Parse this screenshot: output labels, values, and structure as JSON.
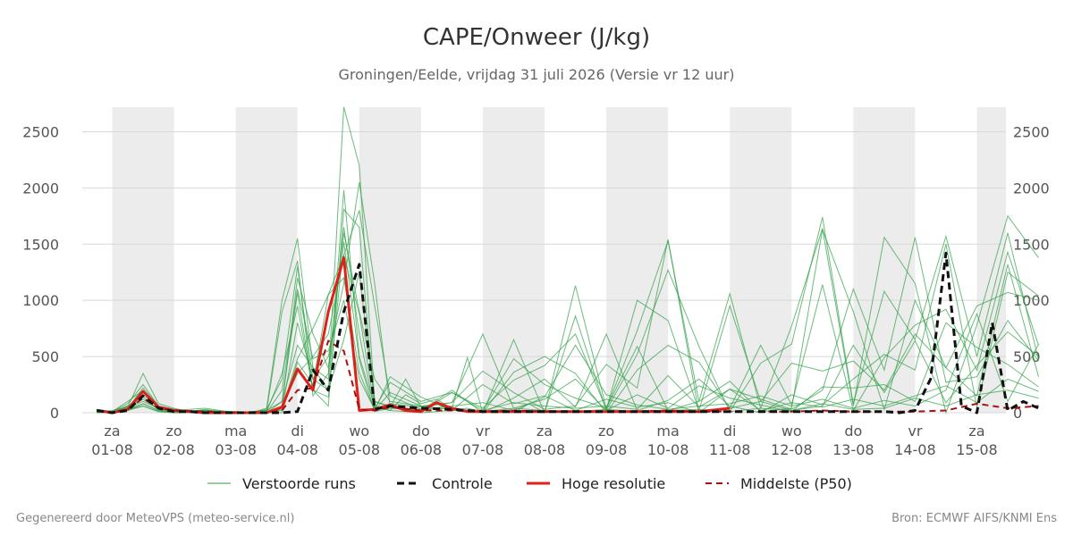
{
  "chart_data": {
    "type": "line",
    "title": "CAPE/Onweer (J/kg)",
    "subtitle": "Groningen/Eelde, vrijdag 31 juli 2026 (Versie vr 12 uur)",
    "ylim": [
      0,
      2750
    ],
    "yticks": [
      0,
      500,
      1000,
      1500,
      2000,
      2500
    ],
    "x_start": "2026-07-31 12:00",
    "x_end": "2026-08-15 12:00",
    "x_ticks": [
      {
        "day": "za",
        "date": "01-08"
      },
      {
        "day": "zo",
        "date": "02-08"
      },
      {
        "day": "ma",
        "date": "03-08"
      },
      {
        "day": "di",
        "date": "04-08"
      },
      {
        "day": "wo",
        "date": "05-08"
      },
      {
        "day": "do",
        "date": "06-08"
      },
      {
        "day": "vr",
        "date": "07-08"
      },
      {
        "day": "za",
        "date": "08-08"
      },
      {
        "day": "zo",
        "date": "09-08"
      },
      {
        "day": "ma",
        "date": "10-08"
      },
      {
        "day": "di",
        "date": "11-08"
      },
      {
        "day": "wo",
        "date": "12-08"
      },
      {
        "day": "do",
        "date": "13-08"
      },
      {
        "day": "vr",
        "date": "14-08"
      },
      {
        "day": "za",
        "date": "15-08"
      }
    ],
    "grid": true,
    "legend_position": "bottom",
    "ensemble_series": [
      {
        "x": [
          -0.25,
          0,
          0.25,
          0.5,
          0.75,
          1,
          1.25,
          1.5,
          1.75,
          2,
          2.25,
          2.5,
          2.75,
          3,
          3.25,
          3.5,
          3.75,
          4,
          4.25,
          4.5,
          4.75,
          5,
          5.25,
          5.5,
          5.75,
          6,
          6.25,
          6.5,
          6.75,
          7,
          7.5,
          8,
          8.5,
          9,
          9.5,
          10,
          10.5,
          11,
          11.5,
          12,
          12.5,
          13,
          13.5,
          14,
          14.5,
          15
        ],
        "y": [
          30,
          0,
          50,
          350,
          80,
          40,
          10,
          30,
          10,
          0,
          0,
          40,
          1000,
          1550,
          400,
          300,
          2720,
          2200,
          100,
          50,
          300,
          50,
          80,
          20,
          40,
          10,
          20,
          0,
          80,
          0,
          1130,
          40,
          730,
          1530,
          100,
          1060,
          40,
          770,
          1640,
          60,
          1560,
          1150,
          0,
          780,
          1750,
          1380
        ]
      },
      {
        "x": [
          -0.25,
          0,
          0.25,
          0.5,
          0.75,
          1,
          1.25,
          1.5,
          1.75,
          2,
          2.25,
          2.5,
          2.75,
          3,
          3.25,
          3.5,
          3.75,
          4,
          4.25,
          4.5,
          4.75,
          5,
          5.25,
          5.5,
          5.75,
          6,
          6.5,
          7,
          7.5,
          8,
          8.5,
          9,
          9.5,
          10,
          10.5,
          11,
          11.5,
          12,
          12.5,
          13,
          13.5,
          14,
          14.5,
          15
        ],
        "y": [
          20,
          10,
          80,
          250,
          60,
          30,
          20,
          10,
          0,
          0,
          0,
          30,
          300,
          1300,
          300,
          200,
          1980,
          500,
          60,
          20,
          160,
          80,
          120,
          40,
          490,
          0,
          650,
          0,
          860,
          20,
          520,
          1270,
          590,
          10,
          440,
          610,
          1740,
          80,
          1080,
          650,
          1570,
          500,
          1600,
          470
        ]
      },
      {
        "x": [
          -0.25,
          0,
          0.25,
          0.5,
          0.75,
          1,
          1.5,
          2,
          2.5,
          2.75,
          3,
          3.25,
          3.5,
          3.75,
          4,
          4.25,
          4.5,
          5,
          5.5,
          6,
          6.5,
          7,
          7.5,
          8,
          8.5,
          9,
          9.5,
          10,
          10.5,
          11,
          11.5,
          12,
          12.5,
          13,
          13.5,
          14,
          14.5,
          15
        ],
        "y": [
          10,
          0,
          40,
          160,
          50,
          20,
          40,
          0,
          20,
          100,
          1070,
          200,
          60,
          1810,
          1650,
          40,
          270,
          100,
          180,
          40,
          290,
          420,
          700,
          30,
          1000,
          820,
          20,
          950,
          100,
          440,
          370,
          460,
          200,
          700,
          400,
          950,
          1070,
          1000
        ]
      },
      {
        "x": [
          -0.25,
          0,
          0.25,
          0.5,
          0.75,
          1,
          1.5,
          2,
          2.5,
          2.75,
          3,
          3.25,
          3.5,
          3.75,
          4,
          4.25,
          4.5,
          5,
          5.5,
          6,
          6.5,
          7,
          7.5,
          8,
          8.5,
          9,
          9.5,
          10,
          10.5,
          11,
          11.5,
          12,
          12.5,
          13,
          13.5,
          14,
          14.5,
          15
        ],
        "y": [
          0,
          10,
          100,
          200,
          40,
          10,
          20,
          0,
          10,
          20,
          800,
          300,
          500,
          1150,
          2050,
          1150,
          50,
          20,
          200,
          0,
          360,
          500,
          350,
          0,
          380,
          600,
          450,
          40,
          600,
          70,
          1140,
          20,
          490,
          780,
          920,
          380,
          1430,
          600
        ]
      },
      {
        "x": [
          -0.25,
          0,
          0.25,
          0.5,
          0.75,
          1,
          1.5,
          2,
          2.5,
          2.75,
          3,
          3.25,
          3.5,
          3.75,
          4,
          4.25,
          4.5,
          5,
          5.5,
          6,
          6.5,
          7,
          7.5,
          8,
          8.5,
          9,
          9.5,
          10,
          10.5,
          11,
          11.5,
          12,
          12.5,
          13,
          13.5,
          14,
          14.5,
          15
        ],
        "y": [
          20,
          0,
          60,
          120,
          30,
          20,
          10,
          0,
          0,
          50,
          1200,
          700,
          400,
          1600,
          900,
          300,
          100,
          60,
          90,
          370,
          180,
          30,
          60,
          430,
          220,
          1540,
          0,
          210,
          120,
          30,
          200,
          1100,
          380,
          1560,
          270,
          320,
          820,
          460
        ]
      },
      {
        "x": [
          -0.25,
          0,
          0.25,
          0.5,
          0.75,
          1,
          1.5,
          2,
          2.5,
          2.75,
          3,
          3.25,
          3.5,
          3.75,
          4,
          4.25,
          4.5,
          5,
          5.5,
          6,
          6.5,
          7,
          7.5,
          8,
          8.5,
          9,
          9.5,
          10,
          10.5,
          11,
          11.5,
          12,
          12.5,
          13,
          13.5,
          14,
          14.5,
          15
        ],
        "y": [
          10,
          0,
          30,
          80,
          20,
          10,
          20,
          10,
          0,
          0,
          450,
          250,
          1050,
          1400,
          1800,
          950,
          150,
          30,
          40,
          0,
          130,
          300,
          50,
          700,
          20,
          110,
          300,
          60,
          0,
          160,
          70,
          300,
          520,
          380,
          1500,
          50,
          1250,
          1040
        ]
      },
      {
        "x": [
          -0.25,
          0,
          0.25,
          0.5,
          0.75,
          1,
          1.5,
          2,
          2.5,
          2.75,
          3,
          3.25,
          3.5,
          3.75,
          4,
          4.25,
          4.5,
          5,
          5.5,
          6,
          6.5,
          7,
          7.5,
          8,
          8.5,
          9,
          9.5,
          10,
          10.5,
          11,
          11.5,
          12,
          12.5,
          13,
          13.5,
          14,
          14.5,
          15
        ],
        "y": [
          0,
          20,
          50,
          100,
          40,
          20,
          0,
          0,
          20,
          900,
          1350,
          150,
          350,
          1650,
          700,
          20,
          320,
          140,
          20,
          250,
          80,
          150,
          20,
          120,
          50,
          90,
          0,
          40,
          100,
          20,
          60,
          600,
          180,
          640,
          90,
          420,
          720,
          500
        ]
      },
      {
        "x": [
          -0.25,
          0,
          0.25,
          0.5,
          0.75,
          1,
          1.5,
          2,
          2.5,
          2.75,
          3,
          3.25,
          3.5,
          3.75,
          4,
          4.25,
          4.5,
          5,
          5.5,
          6,
          6.5,
          7,
          7.5,
          8,
          8.5,
          9,
          9.5,
          10,
          10.5,
          11,
          11.5,
          12,
          12.5,
          13,
          13.5,
          14,
          14.5,
          15
        ],
        "y": [
          30,
          10,
          20,
          60,
          10,
          0,
          10,
          0,
          0,
          100,
          600,
          400,
          200,
          650,
          1250,
          100,
          60,
          10,
          180,
          20,
          480,
          250,
          130,
          40,
          590,
          20,
          100,
          280,
          10,
          40,
          1630,
          900,
          30,
          1000,
          400,
          150,
          1320,
          320
        ]
      },
      {
        "x": [
          -0.25,
          0,
          0.25,
          0.5,
          0.75,
          1,
          1.5,
          2,
          2.5,
          2.75,
          3,
          3.25,
          3.5,
          3.75,
          4,
          4.25,
          4.5,
          5,
          5.5,
          6,
          6.5,
          7,
          7.5,
          8,
          8.5,
          9,
          9.5,
          10,
          10.5,
          11,
          11.5,
          12,
          12.5,
          13,
          13.5,
          14,
          14.5,
          15
        ],
        "y": [
          10,
          0,
          40,
          220,
          60,
          30,
          0,
          10,
          0,
          200,
          1100,
          480,
          550,
          1000,
          300,
          30,
          80,
          50,
          90,
          700,
          40,
          120,
          300,
          20,
          160,
          40,
          240,
          130,
          70,
          10,
          230,
          220,
          250,
          100,
          800,
          580,
          430,
          230
        ]
      },
      {
        "x": [
          -0.25,
          0,
          0.25,
          0.5,
          0.75,
          1,
          1.5,
          2,
          2.5,
          2.75,
          3,
          3.25,
          3.5,
          3.75,
          4,
          4.25,
          4.5,
          5,
          5.5,
          6,
          6.5,
          7,
          7.5,
          8,
          8.5,
          9,
          9.5,
          10,
          10.5,
          11,
          11.5,
          12,
          12.5,
          13,
          13.5,
          14,
          14.5,
          15
        ],
        "y": [
          20,
          10,
          60,
          140,
          30,
          10,
          20,
          0,
          10,
          350,
          950,
          200,
          140,
          1520,
          470,
          10,
          40,
          30,
          60,
          90,
          20,
          140,
          600,
          160,
          70,
          30,
          60,
          80,
          150,
          60,
          120,
          40,
          110,
          60,
          200,
          880,
          100,
          610
        ]
      },
      {
        "x": [
          -0.25,
          0,
          0.25,
          0.5,
          0.75,
          1,
          1.5,
          2,
          2.5,
          2.75,
          3,
          3.25,
          3.5,
          3.75,
          4,
          4.25,
          4.5,
          5,
          5.5,
          6,
          6.5,
          7,
          7.5,
          8,
          8.5,
          9,
          9.5,
          10,
          10.5,
          11,
          11.5,
          12,
          12.5,
          13,
          13.5,
          14,
          14.5,
          15
        ],
        "y": [
          0,
          0,
          20,
          80,
          20,
          0,
          0,
          0,
          0,
          30,
          480,
          750,
          1050,
          1200,
          360,
          20,
          180,
          60,
          30,
          20,
          90,
          60,
          40,
          60,
          30,
          330,
          50,
          210,
          20,
          90,
          50,
          120,
          60,
          150,
          240,
          90,
          300,
          190
        ]
      },
      {
        "x": [
          -0.25,
          0,
          0.25,
          0.5,
          0.75,
          1,
          1.5,
          2,
          2.5,
          2.75,
          3,
          3.25,
          3.5,
          3.75,
          4,
          4.25,
          4.5,
          5,
          5.5,
          6,
          6.5,
          7,
          7.5,
          8,
          8.5,
          9,
          9.5,
          10,
          10.5,
          11,
          11.5,
          12,
          12.5,
          13,
          13.5,
          14,
          14.5,
          15
        ],
        "y": [
          10,
          0,
          30,
          60,
          10,
          0,
          10,
          0,
          0,
          60,
          350,
          500,
          700,
          1400,
          880,
          50,
          20,
          0,
          20,
          10,
          40,
          20,
          10,
          30,
          10,
          20,
          30,
          10,
          40,
          20,
          80,
          30,
          40,
          130,
          60,
          160,
          200,
          130
        ]
      }
    ],
    "series": [
      {
        "name": "Controle",
        "x": [
          -0.25,
          0,
          0.25,
          0.5,
          0.75,
          1,
          1.25,
          1.5,
          1.75,
          2,
          2.5,
          2.75,
          3,
          3.25,
          3.5,
          3.75,
          4,
          4.25,
          4.5,
          5,
          5.5,
          6,
          7,
          8,
          9,
          10,
          11,
          12,
          12.5,
          12.75,
          13,
          13.25,
          13.5,
          13.75,
          14,
          14.25,
          14.5,
          14.75,
          15
        ],
        "y": [
          20,
          0,
          20,
          150,
          40,
          10,
          10,
          0,
          0,
          0,
          0,
          0,
          10,
          380,
          200,
          900,
          1320,
          30,
          60,
          40,
          30,
          10,
          10,
          10,
          10,
          10,
          10,
          10,
          10,
          0,
          20,
          300,
          1420,
          60,
          0,
          800,
          20,
          100,
          40
        ]
      },
      {
        "name": "Hoge resolutie",
        "x": [
          -0.25,
          0,
          0.25,
          0.5,
          0.75,
          1,
          1.25,
          1.5,
          1.75,
          2,
          2.5,
          2.75,
          3,
          3.25,
          3.5,
          3.75,
          4,
          4.25,
          4.5,
          4.75,
          5,
          5.25,
          5.5,
          5.75,
          6,
          6.5,
          7,
          8,
          9,
          9.5,
          10
        ],
        "y": [
          20,
          0,
          30,
          190,
          50,
          20,
          10,
          0,
          0,
          0,
          0,
          50,
          390,
          200,
          900,
          1380,
          20,
          30,
          70,
          20,
          10,
          90,
          40,
          10,
          10,
          10,
          10,
          10,
          10,
          10,
          40
        ]
      },
      {
        "name": "Middelste (P50)",
        "x": [
          -0.25,
          0,
          0.25,
          0.5,
          0.75,
          1,
          1.5,
          2,
          2.5,
          2.75,
          3,
          3.25,
          3.5,
          3.75,
          4,
          4.25,
          4.5,
          5,
          5.5,
          6,
          6.5,
          7,
          7.5,
          8,
          8.5,
          9,
          9.5,
          10,
          10.5,
          11,
          11.5,
          12,
          12.5,
          13,
          13.5,
          14,
          14.5,
          15
        ],
        "y": [
          20,
          0,
          30,
          130,
          40,
          20,
          10,
          0,
          0,
          20,
          200,
          220,
          640,
          550,
          30,
          20,
          50,
          20,
          20,
          10,
          20,
          10,
          10,
          10,
          10,
          20,
          10,
          10,
          10,
          10,
          20,
          10,
          10,
          10,
          20,
          80,
          40,
          60
        ]
      }
    ]
  },
  "legend": {
    "ensemble": "Verstoorde runs",
    "control": "Controle",
    "hires": "Hoge resolutie",
    "median": "Middelste (P50)"
  },
  "footer": {
    "left": "Gegenereerd door MeteoVPS (meteo-service.nl)",
    "right": "Bron: ECMWF AIFS/KNMI Ens"
  },
  "colors": {
    "ensemble": "#2e9e44",
    "control": "#111111",
    "hires": "#e0201a",
    "median": "#a81010",
    "shade": "#ececec",
    "grid": "#d8d8d8"
  }
}
